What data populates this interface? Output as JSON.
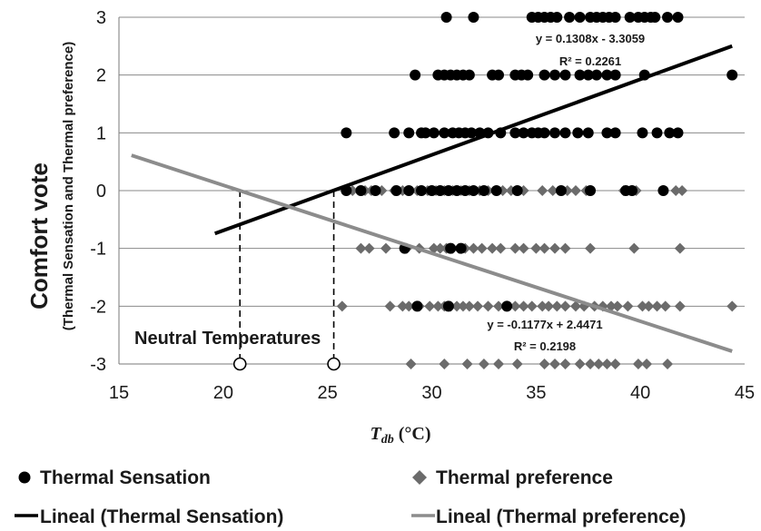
{
  "chart_data": {
    "type": "scatter",
    "xlabel_main": "T",
    "xlabel_sub": "db",
    "xlabel_unit": " (°C)",
    "ylabel": "Comfort vote",
    "ylabel_sub": "(Thermal Sensation and Thermal preference)",
    "xlim": [
      15,
      45
    ],
    "ylim": [
      -3,
      3
    ],
    "xticks": [
      15,
      20,
      25,
      30,
      35,
      40,
      45
    ],
    "yticks": [
      -3,
      -2,
      -1,
      0,
      1,
      2,
      3
    ],
    "grid": "horizontal",
    "legend_position": "bottom",
    "series": [
      {
        "name": "Thermal Sensation",
        "marker": "circle",
        "color": "#000000",
        "points": [
          [
            30.7,
            3
          ],
          [
            32.0,
            3
          ],
          [
            34.8,
            3
          ],
          [
            35.1,
            3
          ],
          [
            35.4,
            3
          ],
          [
            35.7,
            3
          ],
          [
            36.0,
            3
          ],
          [
            36.6,
            3
          ],
          [
            37.1,
            3
          ],
          [
            37.6,
            3
          ],
          [
            37.9,
            3
          ],
          [
            38.2,
            3
          ],
          [
            38.5,
            3
          ],
          [
            38.8,
            3
          ],
          [
            39.5,
            3
          ],
          [
            39.9,
            3
          ],
          [
            40.2,
            3
          ],
          [
            40.5,
            3
          ],
          [
            40.7,
            3
          ],
          [
            41.3,
            3
          ],
          [
            41.8,
            3
          ],
          [
            29.2,
            2
          ],
          [
            30.3,
            2
          ],
          [
            30.6,
            2
          ],
          [
            30.9,
            2
          ],
          [
            31.2,
            2
          ],
          [
            31.5,
            2
          ],
          [
            31.8,
            2
          ],
          [
            32.9,
            2
          ],
          [
            33.2,
            2
          ],
          [
            34.0,
            2
          ],
          [
            34.3,
            2
          ],
          [
            34.6,
            2
          ],
          [
            35.4,
            2
          ],
          [
            35.9,
            2
          ],
          [
            36.4,
            2
          ],
          [
            37.1,
            2
          ],
          [
            37.5,
            2
          ],
          [
            37.9,
            2
          ],
          [
            38.4,
            2
          ],
          [
            38.8,
            2
          ],
          [
            40.2,
            2
          ],
          [
            44.4,
            2
          ],
          [
            25.9,
            1
          ],
          [
            28.2,
            1
          ],
          [
            28.9,
            1
          ],
          [
            29.5,
            1
          ],
          [
            29.7,
            1
          ],
          [
            30.1,
            1
          ],
          [
            30.6,
            1
          ],
          [
            31.0,
            1
          ],
          [
            31.3,
            1
          ],
          [
            31.6,
            1
          ],
          [
            31.9,
            1
          ],
          [
            32.3,
            1
          ],
          [
            32.7,
            1
          ],
          [
            33.3,
            1
          ],
          [
            34.0,
            1
          ],
          [
            34.4,
            1
          ],
          [
            34.8,
            1
          ],
          [
            35.1,
            1
          ],
          [
            35.4,
            1
          ],
          [
            35.9,
            1
          ],
          [
            36.4,
            1
          ],
          [
            37.0,
            1
          ],
          [
            37.5,
            1
          ],
          [
            38.4,
            1
          ],
          [
            38.8,
            1
          ],
          [
            40.1,
            1
          ],
          [
            40.8,
            1
          ],
          [
            41.4,
            1
          ],
          [
            41.8,
            1
          ],
          [
            25.9,
            0
          ],
          [
            26.6,
            0
          ],
          [
            27.3,
            0
          ],
          [
            28.3,
            0
          ],
          [
            28.9,
            0
          ],
          [
            29.5,
            0
          ],
          [
            30.0,
            0
          ],
          [
            30.4,
            0
          ],
          [
            30.8,
            0
          ],
          [
            31.2,
            0
          ],
          [
            31.6,
            0
          ],
          [
            32.0,
            0
          ],
          [
            32.5,
            0
          ],
          [
            33.1,
            0
          ],
          [
            34.1,
            0
          ],
          [
            36.2,
            0
          ],
          [
            37.6,
            0
          ],
          [
            39.3,
            0
          ],
          [
            39.6,
            0
          ],
          [
            41.1,
            0
          ],
          [
            28.7,
            -1
          ],
          [
            30.9,
            -1
          ],
          [
            31.4,
            -1
          ],
          [
            29.3,
            -2
          ],
          [
            30.8,
            -2
          ],
          [
            33.6,
            -2
          ]
        ]
      },
      {
        "name": "Thermal preference",
        "marker": "diamond",
        "color": "#6b6b6b",
        "points": [
          [
            26.2,
            0
          ],
          [
            26.8,
            0
          ],
          [
            27.1,
            0
          ],
          [
            27.6,
            0
          ],
          [
            28.2,
            0
          ],
          [
            28.6,
            0
          ],
          [
            28.9,
            0
          ],
          [
            29.3,
            0
          ],
          [
            29.8,
            0
          ],
          [
            30.2,
            0
          ],
          [
            30.6,
            0
          ],
          [
            31.0,
            0
          ],
          [
            31.4,
            0
          ],
          [
            31.8,
            0
          ],
          [
            32.3,
            0
          ],
          [
            32.7,
            0
          ],
          [
            33.4,
            0
          ],
          [
            33.8,
            0
          ],
          [
            34.4,
            0
          ],
          [
            35.3,
            0
          ],
          [
            35.8,
            0
          ],
          [
            36.5,
            0
          ],
          [
            36.9,
            0
          ],
          [
            37.4,
            0
          ],
          [
            39.2,
            0
          ],
          [
            39.8,
            0
          ],
          [
            41.7,
            0
          ],
          [
            42.0,
            0
          ],
          [
            26.6,
            -1
          ],
          [
            27.0,
            -1
          ],
          [
            27.8,
            -1
          ],
          [
            28.8,
            -1
          ],
          [
            29.4,
            -1
          ],
          [
            30.1,
            -1
          ],
          [
            30.4,
            -1
          ],
          [
            30.7,
            -1
          ],
          [
            31.0,
            -1
          ],
          [
            31.3,
            -1
          ],
          [
            31.6,
            -1
          ],
          [
            32.0,
            -1
          ],
          [
            32.4,
            -1
          ],
          [
            32.9,
            -1
          ],
          [
            33.3,
            -1
          ],
          [
            34.0,
            -1
          ],
          [
            34.4,
            -1
          ],
          [
            35.0,
            -1
          ],
          [
            35.4,
            -1
          ],
          [
            35.9,
            -1
          ],
          [
            36.4,
            -1
          ],
          [
            37.6,
            -1
          ],
          [
            39.7,
            -1
          ],
          [
            41.9,
            -1
          ],
          [
            25.7,
            -2
          ],
          [
            28.0,
            -2
          ],
          [
            28.6,
            -2
          ],
          [
            28.9,
            -2
          ],
          [
            29.4,
            -2
          ],
          [
            29.9,
            -2
          ],
          [
            30.3,
            -2
          ],
          [
            30.6,
            -2
          ],
          [
            30.9,
            -2
          ],
          [
            31.2,
            -2
          ],
          [
            31.5,
            -2
          ],
          [
            31.8,
            -2
          ],
          [
            32.2,
            -2
          ],
          [
            32.7,
            -2
          ],
          [
            33.2,
            -2
          ],
          [
            33.6,
            -2
          ],
          [
            34.0,
            -2
          ],
          [
            34.4,
            -2
          ],
          [
            34.8,
            -2
          ],
          [
            35.3,
            -2
          ],
          [
            35.6,
            -2
          ],
          [
            36.0,
            -2
          ],
          [
            36.4,
            -2
          ],
          [
            36.9,
            -2
          ],
          [
            37.3,
            -2
          ],
          [
            37.8,
            -2
          ],
          [
            38.2,
            -2
          ],
          [
            38.6,
            -2
          ],
          [
            38.9,
            -2
          ],
          [
            39.4,
            -2
          ],
          [
            40.1,
            -2
          ],
          [
            40.4,
            -2
          ],
          [
            40.8,
            -2
          ],
          [
            41.2,
            -2
          ],
          [
            41.9,
            -2
          ],
          [
            44.4,
            -2
          ],
          [
            29.0,
            -3
          ],
          [
            30.6,
            -3
          ],
          [
            31.7,
            -3
          ],
          [
            32.5,
            -3
          ],
          [
            33.2,
            -3
          ],
          [
            34.1,
            -3
          ],
          [
            35.4,
            -3
          ],
          [
            35.9,
            -3
          ],
          [
            36.4,
            -3
          ],
          [
            37.1,
            -3
          ],
          [
            37.6,
            -3
          ],
          [
            38.0,
            -3
          ],
          [
            38.4,
            -3
          ],
          [
            38.8,
            -3
          ],
          [
            39.9,
            -3
          ],
          [
            40.3,
            -3
          ],
          [
            41.3,
            -3
          ]
        ]
      }
    ],
    "trendlines": [
      {
        "name": "Lineal (Thermal Sensation)",
        "color": "#000000",
        "slope": 0.1308,
        "intercept": -3.3059,
        "x_range": [
          19.6,
          44.4
        ],
        "equation": "y = 0.1308x - 3.3059",
        "r2": "R² = 0.2261"
      },
      {
        "name": "Lineal (Thermal preference)",
        "color": "#8c8c8c",
        "slope": -0.1177,
        "intercept": 2.4471,
        "x_range": [
          15.6,
          44.4
        ],
        "equation": "y = -0.1177x + 2.4471",
        "r2": "R² = 0.2198"
      }
    ],
    "neutral_temperatures": {
      "label": "Neutral Temperatures",
      "points": [
        [
          20.8,
          -3
        ],
        [
          25.3,
          -3
        ]
      ]
    }
  }
}
